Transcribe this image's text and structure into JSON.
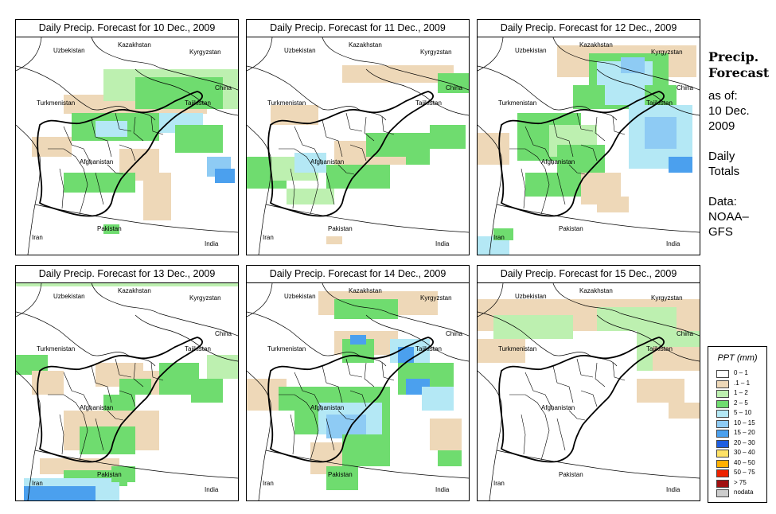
{
  "panels": [
    {
      "title": "Daily Precip. Forecast for  10 Dec., 2009"
    },
    {
      "title": "Daily Precip. Forecast for  11 Dec., 2009"
    },
    {
      "title": "Daily Precip. Forecast for  12 Dec., 2009"
    },
    {
      "title": "Daily Precip. Forecast for  13 Dec., 2009"
    },
    {
      "title": "Daily Precip. Forecast for  14 Dec., 2009"
    },
    {
      "title": "Daily Precip. Forecast for  15 Dec., 2009"
    }
  ],
  "map_labels": {
    "kazakhstan": "Kazakhstan",
    "uzbekistan": "Uzbekistan",
    "kyrgyzstan": "Kyrgyzstan",
    "china": "China",
    "turkmenistan": "Turkmenistan",
    "tajikistan": "Tajikistan",
    "afghanistan": "Afghanistan",
    "iran": "Iran",
    "pakistan": "Pakistan",
    "india": "India"
  },
  "sidebar": {
    "title_line1": "Precip.",
    "title_line2": "Forecast",
    "asof_label": "as of:",
    "asof_date1": "10 Dec.",
    "asof_date2": "2009",
    "totals_line1": "Daily",
    "totals_line2": "Totals",
    "data_line1": "Data:",
    "data_line2": "NOAA–",
    "data_line3": "GFS"
  },
  "legend": {
    "title": "PPT (mm)",
    "items": [
      {
        "label": "0 – 1",
        "color": "#ffffff"
      },
      {
        "label": ".1 – 1",
        "color": "#eed8b8"
      },
      {
        "label": "1 – 2",
        "color": "#bdf0b0"
      },
      {
        "label": "2 – 5",
        "color": "#6fdc6f"
      },
      {
        "label": "5 – 10",
        "color": "#b4e8f5"
      },
      {
        "label": "10 – 15",
        "color": "#8ecbf4"
      },
      {
        "label": "15 – 20",
        "color": "#4ba0ee"
      },
      {
        "label": "20 – 30",
        "color": "#1f5ee0"
      },
      {
        "label": "30 – 40",
        "color": "#ffe266"
      },
      {
        "label": "40 – 50",
        "color": "#ffb000"
      },
      {
        "label": "50 – 75",
        "color": "#ee2200"
      },
      {
        "label": "> 75",
        "color": "#a01010"
      },
      {
        "label": "nodata",
        "color": "#cccccc"
      }
    ]
  }
}
